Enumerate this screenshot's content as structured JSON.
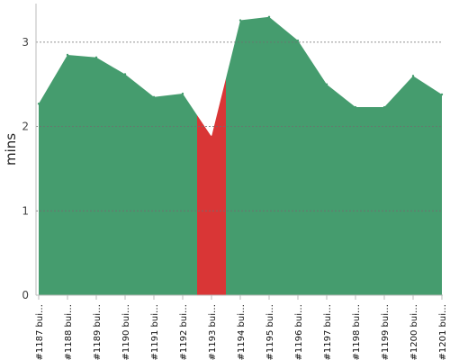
{
  "chart_data": {
    "type": "area",
    "title": "",
    "xlabel": "",
    "ylabel": "mins",
    "ylim": [
      0,
      3.5
    ],
    "yticks": [
      0,
      1,
      2,
      3
    ],
    "grid": true,
    "legend": "none",
    "categories": [
      "#1187 bui…",
      "#1188 bui…",
      "#1189 bui…",
      "#1190 bui…",
      "#1191 bui…",
      "#1192 bui…",
      "#1193 bui…",
      "#1194 bui…",
      "#1195 bui…",
      "#1196 bui…",
      "#1197 bui…",
      "#1198 bui…",
      "#1199 bui…",
      "#1200 bui…",
      "#1201 bui…"
    ],
    "values": [
      2.27,
      2.85,
      2.82,
      2.62,
      2.35,
      2.39,
      1.88,
      3.26,
      3.3,
      3.02,
      2.5,
      2.23,
      2.23,
      2.6,
      2.38
    ],
    "status": [
      "ok",
      "ok",
      "ok",
      "ok",
      "ok",
      "ok",
      "failed",
      "ok",
      "ok",
      "ok",
      "ok",
      "ok",
      "ok",
      "ok",
      "ok"
    ],
    "colors": {
      "ok": "#459c6e",
      "failed": "#d93636"
    }
  }
}
